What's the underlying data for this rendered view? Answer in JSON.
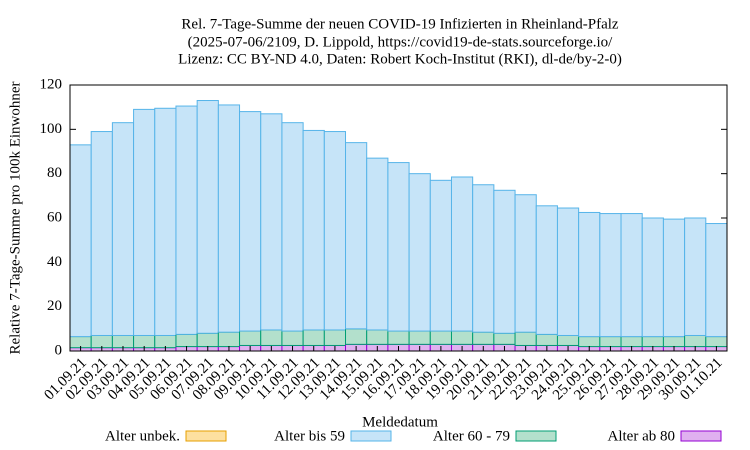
{
  "chart_data": {
    "type": "stacked-bar",
    "title": [
      "Rel. 7-Tage-Summe der neuen COVID-19 Infizierten in Rheinland-Pfalz",
      "(2025-07-06/2109, D. Lippold, https://covid19-de-stats.sourceforge.io/",
      "Lizenz: CC BY-ND 4.0, Daten: Robert Koch-Institut (RKI), dl-de/by-2-0)"
    ],
    "x_label": "Meldedatum",
    "y_label": "Relative 7-Tage-Summe pro 100k Einwohner",
    "categories": [
      "01.09.21",
      "02.09.21",
      "03.09.21",
      "04.09.21",
      "05.09.21",
      "06.09.21",
      "07.09.21",
      "08.09.21",
      "09.09.21",
      "10.09.21",
      "11.09.21",
      "12.09.21",
      "13.09.21",
      "14.09.21",
      "15.09.21",
      "16.09.21",
      "17.09.21",
      "18.09.21",
      "19.09.21",
      "20.09.21",
      "21.09.21",
      "22.09.21",
      "23.09.21",
      "24.09.21",
      "25.09.21",
      "26.09.21",
      "27.09.21",
      "28.09.21",
      "29.09.21",
      "30.09.21",
      "01.10.21"
    ],
    "series": [
      {
        "name": "Alter unbek.",
        "color": "#fde0a0",
        "edge_color": "#e69f00",
        "values": [
          0,
          0,
          0,
          0,
          0,
          0,
          0,
          0,
          0,
          0,
          0,
          0,
          0,
          0,
          0,
          0,
          0,
          0,
          0,
          0,
          0,
          0,
          0,
          0,
          0,
          0,
          0,
          0,
          0,
          0,
          0
        ]
      },
      {
        "name": "Alter bis 59",
        "color": "#c6e4f8",
        "edge_color": "#56b4e9",
        "values": [
          86.5,
          92,
          96,
          102,
          102.5,
          103,
          105,
          102.5,
          99,
          97.5,
          94,
          90,
          89.5,
          84,
          77.5,
          76,
          71,
          68,
          69.5,
          66.5,
          64.5,
          62,
          58,
          57.5,
          56,
          55.5,
          55.5,
          53.5,
          53,
          53,
          51
        ]
      },
      {
        "name": "Alter 60 - 79",
        "color": "#b3e0cc",
        "edge_color": "#009e73",
        "values": [
          5,
          5.5,
          5.5,
          5.5,
          5.5,
          5.5,
          6,
          6.5,
          6.5,
          7,
          6.5,
          7,
          7,
          7,
          6.5,
          6,
          6,
          6,
          6,
          5.5,
          5,
          6,
          5,
          4.5,
          4.5,
          4.5,
          4.5,
          4.5,
          4.5,
          5,
          4.5
        ]
      },
      {
        "name": "Alter ab 80",
        "color": "#e0b0f0",
        "edge_color": "#9400d3",
        "values": [
          1.5,
          1.5,
          1.5,
          1.5,
          1.5,
          2,
          2,
          2,
          2.5,
          2.5,
          2.5,
          2.5,
          2.5,
          3,
          3,
          3,
          3,
          3,
          3,
          3,
          3,
          2.5,
          2.5,
          2.5,
          2,
          2,
          2,
          2,
          2,
          2,
          2
        ]
      }
    ],
    "ylim": [
      0,
      120
    ],
    "yticks": [
      0,
      20,
      40,
      60,
      80,
      100,
      120
    ]
  }
}
